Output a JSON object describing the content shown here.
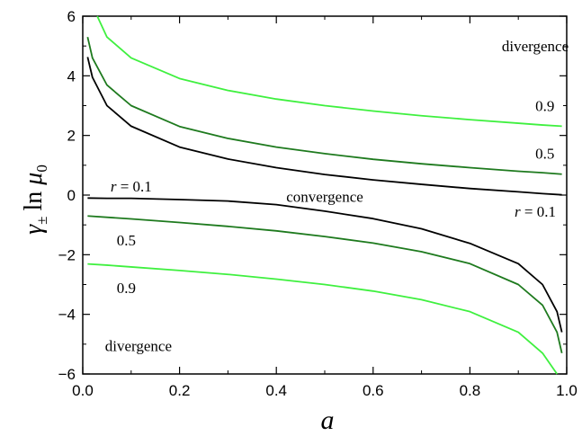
{
  "chart_data": {
    "type": "line",
    "xlabel": "a",
    "ylabel": {
      "gamma": "γ",
      "sub": "±",
      "ln": "ln",
      "mu": "μ",
      "mu_sub": "0"
    },
    "xlim": [
      0.0,
      1.0
    ],
    "ylim": [
      -6,
      6
    ],
    "xticks": [
      0.0,
      0.2,
      0.4,
      0.6,
      0.8,
      1.0
    ],
    "xtick_labels": [
      "0.0",
      "0.2",
      "0.4",
      "0.6",
      "0.8",
      "1.0"
    ],
    "yticks": [
      -6,
      -4,
      -2,
      0,
      2,
      4,
      6
    ],
    "ytick_labels": [
      "−6",
      "−4",
      "−2",
      "0",
      "2",
      "4",
      "6"
    ],
    "grid": false,
    "legend": "none",
    "series": [
      {
        "r": 0.1,
        "color": "#000000",
        "upper": {
          "x": [
            0.01,
            0.02,
            0.05,
            0.1,
            0.2,
            0.3,
            0.4,
            0.5,
            0.6,
            0.7,
            0.8,
            0.9,
            0.95,
            0.99
          ],
          "y": [
            4.63,
            3.95,
            3.0,
            2.31,
            1.61,
            1.21,
            0.92,
            0.69,
            0.51,
            0.36,
            0.22,
            0.11,
            0.05,
            0.01
          ]
        },
        "lower": {
          "x": [
            0.01,
            0.05,
            0.1,
            0.2,
            0.3,
            0.4,
            0.5,
            0.6,
            0.7,
            0.8,
            0.9,
            0.95,
            0.98,
            0.99
          ],
          "y": [
            -0.1,
            -0.11,
            -0.11,
            -0.15,
            -0.2,
            -0.32,
            -0.54,
            -0.79,
            -1.13,
            -1.62,
            -2.3,
            -3.0,
            -3.91,
            -4.6
          ]
        }
      },
      {
        "r": 0.5,
        "color": "#1e7a1e",
        "upper": {
          "x": [
            0.01,
            0.02,
            0.05,
            0.1,
            0.2,
            0.3,
            0.4,
            0.5,
            0.6,
            0.7,
            0.8,
            0.9,
            0.95,
            0.99
          ],
          "y": [
            5.3,
            4.6,
            3.69,
            3.0,
            2.3,
            1.9,
            1.61,
            1.39,
            1.2,
            1.05,
            0.92,
            0.8,
            0.75,
            0.7
          ]
        },
        "lower": {
          "x": [
            0.01,
            0.1,
            0.2,
            0.3,
            0.4,
            0.5,
            0.6,
            0.7,
            0.8,
            0.9,
            0.95,
            0.98,
            0.99
          ],
          "y": [
            -0.7,
            -0.8,
            -0.92,
            -1.05,
            -1.2,
            -1.39,
            -1.61,
            -1.9,
            -2.3,
            -3.0,
            -3.69,
            -4.6,
            -5.3
          ]
        }
      },
      {
        "r": 0.9,
        "color": "#3ff03f",
        "upper": {
          "x": [
            0.03,
            0.05,
            0.1,
            0.2,
            0.3,
            0.4,
            0.5,
            0.6,
            0.7,
            0.8,
            0.9,
            0.95,
            0.99
          ],
          "y": [
            6.0,
            5.3,
            4.6,
            3.91,
            3.51,
            3.22,
            3.0,
            2.82,
            2.66,
            2.53,
            2.41,
            2.35,
            2.31
          ]
        },
        "lower": {
          "x": [
            0.01,
            0.05,
            0.1,
            0.2,
            0.3,
            0.4,
            0.5,
            0.6,
            0.7,
            0.8,
            0.9,
            0.95,
            0.98
          ],
          "y": [
            -2.31,
            -2.35,
            -2.41,
            -2.53,
            -2.66,
            -2.82,
            -3.0,
            -3.22,
            -3.51,
            -3.91,
            -4.6,
            -5.3,
            -6.0
          ]
        }
      }
    ],
    "annotations": [
      {
        "id": "divergence-top",
        "text": "divergence",
        "x": 0.935,
        "y": 5.0
      },
      {
        "id": "divergence-bottom",
        "text": "divergence",
        "x": 0.115,
        "y": -5.05
      },
      {
        "id": "convergence",
        "text": "convergence",
        "x": 0.5,
        "y": -0.05
      },
      {
        "id": "label-09-upper",
        "text": "0.9",
        "x": 0.955,
        "y": 3.0
      },
      {
        "id": "label-05-upper",
        "text": "0.5",
        "x": 0.955,
        "y": 1.4
      },
      {
        "id": "label-09-lower",
        "text": "0.9",
        "x": 0.09,
        "y": -3.1
      },
      {
        "id": "label-05-lower",
        "text": "0.5",
        "x": 0.09,
        "y": -1.5
      }
    ],
    "r_labels": [
      {
        "id": "r-label-left",
        "prefix": "r",
        "eq": " = 0.1",
        "x": 0.1,
        "y": 0.3
      },
      {
        "id": "r-label-right",
        "prefix": "r",
        "eq": " = 0.1",
        "x": 0.935,
        "y": -0.55
      }
    ]
  }
}
